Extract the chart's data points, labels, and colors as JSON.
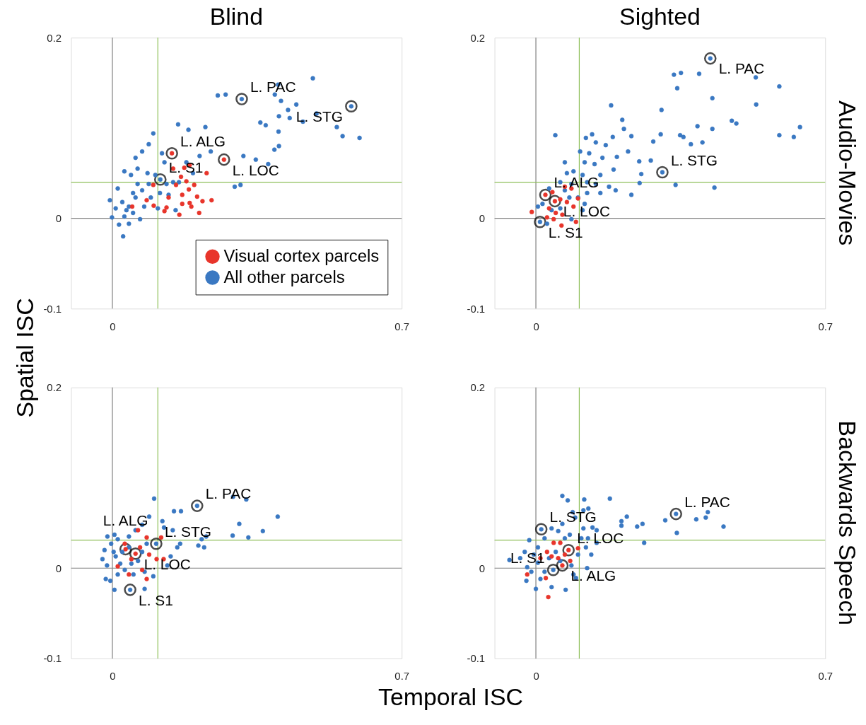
{
  "chart_data": [
    {
      "type": "scatter",
      "title": "Blind",
      "ylabel": "Spatial ISC",
      "xlim": [
        -0.1,
        0.7
      ],
      "ylim": [
        -0.1,
        0.2
      ],
      "xticks": [
        0,
        0.7
      ],
      "yticks": [
        -0.1,
        0,
        0.2
      ],
      "marker": "circle",
      "grid": false,
      "legend": "bottom right",
      "ref_lines": [
        {
          "axis": "x",
          "value": 0,
          "color": "#808080"
        },
        {
          "axis": "y",
          "value": 0,
          "color": "#808080"
        },
        {
          "axis": "x",
          "value": 0.11,
          "color": "#8fbf5a"
        },
        {
          "axis": "y",
          "value": 0.04,
          "color": "#8fbf5a"
        }
      ],
      "annotations": [
        {
          "text": "L. PAC",
          "x": 0.313,
          "y": 0.132
        },
        {
          "text": "L. STG",
          "x": 0.578,
          "y": 0.124
        },
        {
          "text": "L. ALG",
          "x": 0.144,
          "y": 0.072
        },
        {
          "text": "L. LOC",
          "x": 0.27,
          "y": 0.065
        },
        {
          "text": "L. S1",
          "x": 0.116,
          "y": 0.043
        }
      ],
      "series": [
        {
          "name": "Visual cortex parcels",
          "color": "#e8352b",
          "x": [
            0.147,
            0.174,
            0.187,
            0.228,
            0.166,
            0.179,
            0.198,
            0.154,
            0.185,
            0.169,
            0.136,
            0.205,
            0.24,
            0.218,
            0.169,
            0.187,
            0.191,
            0.131,
            0.126,
            0.162,
            0.21,
            0.048,
            0.083,
            0.099,
            0.1,
            0.144,
            0.27
          ],
          "values": [
            0.055,
            0.056,
            0.059,
            0.05,
            0.046,
            0.041,
            0.037,
            0.037,
            0.032,
            0.026,
            0.023,
            0.024,
            0.02,
            0.019,
            0.016,
            0.017,
            0.013,
            0.012,
            0.008,
            0.004,
            0.006,
            0.013,
            0.02,
            0.037,
            0.014,
            0.072,
            0.065
          ]
        },
        {
          "name": "All other parcels",
          "color": "#3a78c2",
          "x": [
            0.485,
            0.401,
            0.393,
            0.408,
            0.445,
            0.425,
            0.494,
            0.403,
            0.429,
            0.461,
            0.543,
            0.557,
            0.598,
            0.358,
            0.371,
            0.402,
            0.403,
            0.392,
            0.255,
            0.274,
            0.317,
            0.347,
            0.377,
            0.296,
            0.31,
            0.225,
            0.159,
            0.184,
            0.238,
            0.211,
            -0.006,
            -0.001,
            0.026,
            0.016,
            0.029,
            0.04,
            0.056,
            0.072,
            0.088,
            0.104,
            0.099,
            0.088,
            0.072,
            0.056,
            0.061,
            0.045,
            0.029,
            0.013,
            0.024,
            0.034,
            0.05,
            0.067,
            0.008,
            0.04,
            0.077,
            0.093,
            0.115,
            0.131,
            0.147,
            0.126,
            0.12,
            0.161,
            0.179,
            0.195,
            0.136,
            0.153,
            0.11,
            0.061,
            0.085,
            0.05,
            0.313,
            0.578,
            0.116
          ],
          "values": [
            0.155,
            0.148,
            0.137,
            0.13,
            0.126,
            0.12,
            0.116,
            0.113,
            0.111,
            0.107,
            0.101,
            0.091,
            0.089,
            0.106,
            0.103,
            0.096,
            0.08,
            0.076,
            0.136,
            0.137,
            0.069,
            0.065,
            0.06,
            0.035,
            0.037,
            0.101,
            0.104,
            0.098,
            0.074,
            0.069,
            0.02,
            0.001,
            -0.02,
            -0.007,
            0.002,
            0.013,
            0.023,
            0.031,
            0.038,
            0.048,
            0.094,
            0.082,
            0.074,
            0.067,
            0.055,
            0.048,
            0.052,
            0.033,
            0.018,
            0.009,
            0.006,
            -0.001,
            0.011,
            -0.006,
            0.013,
            0.023,
            0.028,
            0.038,
            0.04,
            0.062,
            0.072,
            0.04,
            0.062,
            0.05,
            0.026,
            0.009,
            0.011,
            0.038,
            0.05,
            0.028,
            0.132,
            0.124,
            0.043
          ]
        }
      ]
    },
    {
      "type": "scatter",
      "title": "Sighted",
      "y2label": "Audio-Movies",
      "xlim": [
        -0.1,
        0.7
      ],
      "ylim": [
        -0.1,
        0.2
      ],
      "xticks": [
        0,
        0.7
      ],
      "yticks": [
        -0.1,
        0,
        0.2
      ],
      "marker": "circle",
      "grid": false,
      "ref_lines": [
        {
          "axis": "x",
          "value": 0,
          "color": "#808080"
        },
        {
          "axis": "y",
          "value": 0,
          "color": "#808080"
        },
        {
          "axis": "x",
          "value": 0.105,
          "color": "#8fbf5a"
        },
        {
          "axis": "y",
          "value": 0.04,
          "color": "#8fbf5a"
        }
      ],
      "annotations": [
        {
          "text": "L. PAC",
          "x": 0.422,
          "y": 0.177
        },
        {
          "text": "L. STG",
          "x": 0.306,
          "y": 0.051
        },
        {
          "text": "L. ALG",
          "x": 0.023,
          "y": 0.026
        },
        {
          "text": "L. LOC",
          "x": 0.046,
          "y": 0.019
        },
        {
          "text": "L. S1",
          "x": 0.01,
          "y": -0.004
        }
      ],
      "series": [
        {
          "color": "#e8352b",
          "x": [
            -0.01,
            0.062,
            0.097,
            0.04,
            0.07,
            0.086,
            0.059,
            0.075,
            0.091,
            0.032,
            0.048,
            0.027,
            0.064,
            0.102,
            0.043,
            0.023,
            0.046
          ],
          "values": [
            0.007,
            -0.008,
            -0.004,
            0.029,
            0.035,
            0.033,
            0.021,
            0.018,
            0.013,
            0.011,
            0.006,
            0.001,
            0.004,
            0.022,
            -0.001,
            0.026,
            0.019
          ]
        },
        {
          "color": "#3a78c2",
          "x": [
            0.334,
            0.351,
            0.395,
            0.532,
            0.589,
            0.342,
            0.427,
            0.533,
            0.182,
            0.304,
            0.209,
            0.474,
            0.485,
            0.391,
            0.427,
            0.639,
            0.589,
            0.624,
            0.213,
            0.302,
            0.349,
            0.357,
            0.375,
            0.403,
            0.284,
            0.231,
            0.186,
            0.223,
            0.25,
            0.278,
            0.255,
            0.251,
            0.338,
            0.432,
            0.231,
            0.047,
            0.136,
            0.121,
            0.145,
            0.169,
            0.107,
            0.129,
            0.196,
            0.161,
            0.118,
            0.142,
            0.07,
            0.091,
            0.113,
            0.156,
            0.188,
            0.075,
            0.059,
            0.086,
            0.124,
            0.145,
            0.177,
            0.193,
            0.156,
            0.124,
            0.102,
            0.032,
            0.016,
            0.005,
            0.038,
            0.059,
            0.081,
            0.118,
            0.113,
            0.086,
            0.027,
            0.07,
            0.422,
            0.306,
            0.01
          ],
          "values": [
            0.159,
            0.161,
            0.16,
            0.156,
            0.146,
            0.144,
            0.133,
            0.126,
            0.125,
            0.12,
            0.109,
            0.108,
            0.105,
            0.102,
            0.099,
            0.101,
            0.092,
            0.09,
            0.099,
            0.093,
            0.092,
            0.09,
            0.082,
            0.084,
            0.085,
            0.091,
            0.09,
            0.074,
            0.063,
            0.064,
            0.049,
            0.039,
            0.037,
            0.034,
            0.026,
            0.092,
            0.093,
            0.089,
            0.084,
            0.081,
            0.074,
            0.072,
            0.068,
            0.067,
            0.062,
            0.06,
            0.062,
            0.052,
            0.048,
            0.048,
            0.054,
            0.05,
            0.04,
            0.038,
            0.04,
            0.038,
            0.035,
            0.031,
            0.028,
            0.028,
            0.023,
            0.033,
            0.016,
            0.013,
            0.009,
            0.011,
            0.023,
            0.016,
            0.009,
            -0.001,
            -0.006,
            0.031,
            0.177,
            0.051,
            -0.004
          ]
        }
      ]
    },
    {
      "type": "scatter",
      "xlabel": "Temporal ISC",
      "xlim": [
        -0.1,
        0.7
      ],
      "ylim": [
        -0.1,
        0.2
      ],
      "xticks": [
        0,
        0.7
      ],
      "yticks": [
        -0.1,
        0,
        0.2
      ],
      "marker": "circle",
      "grid": false,
      "ref_lines": [
        {
          "axis": "x",
          "value": 0,
          "color": "#808080"
        },
        {
          "axis": "y",
          "value": 0,
          "color": "#808080"
        },
        {
          "axis": "x",
          "value": 0.11,
          "color": "#8fbf5a"
        },
        {
          "axis": "y",
          "value": 0.031,
          "color": "#8fbf5a"
        }
      ],
      "annotations": [
        {
          "text": "L. PAC",
          "x": 0.205,
          "y": 0.069
        },
        {
          "text": "L. ALG",
          "x": 0.032,
          "y": 0.021
        },
        {
          "text": "L. LOC",
          "x": 0.056,
          "y": 0.016
        },
        {
          "text": "L. STG",
          "x": 0.106,
          "y": 0.027
        },
        {
          "text": "L. S1",
          "x": 0.043,
          "y": -0.024
        }
      ],
      "series": [
        {
          "color": "#e8352b",
          "x": [
            0.062,
            0.083,
            0.118,
            0.067,
            0.089,
            0.107,
            0.124,
            0.013,
            0.04,
            0.083,
            0.072,
            0.046,
            0.03,
            0.032,
            0.056
          ],
          "values": [
            0.042,
            0.034,
            0.034,
            0.023,
            0.015,
            0.01,
            0.01,
            0.002,
            -0.007,
            -0.012,
            -0.002,
            0.01,
            0.027,
            0.021,
            0.016
          ]
        },
        {
          "color": "#3a78c2",
          "x": [
            0.101,
            0.149,
            0.166,
            0.292,
            0.324,
            0.4,
            0.307,
            0.364,
            0.291,
            0.329,
            0.227,
            0.216,
            0.208,
            0.222,
            0.164,
            0.157,
            0.141,
            0.133,
            0.089,
            0.121,
            0.125,
            0.146,
            0.072,
            0.056,
            -0.012,
            0.005,
            -0.024,
            -0.016,
            -0.005,
            0.005,
            0.078,
            0.099,
            -0.003,
            0.013,
            0.04,
            -0.019,
            -0.013,
            0.008,
            0.019,
            0.03,
            0.046,
            0.062,
            0.072,
            0.083,
            0.013,
            0.051,
            0.078,
            0.024,
            0.04,
            0.003,
            0.205,
            0.043,
            0.106
          ],
          "values": [
            0.077,
            0.063,
            0.063,
            0.079,
            0.076,
            0.057,
            0.049,
            0.041,
            0.036,
            0.034,
            0.035,
            0.032,
            0.025,
            0.023,
            0.027,
            0.023,
            0.013,
            0.003,
            0.057,
            0.052,
            0.045,
            0.042,
            0.048,
            0.042,
            0.035,
            0.037,
            0.01,
            -0.012,
            -0.014,
            -0.024,
            -0.023,
            -0.009,
            0.027,
            0.032,
            0.035,
            0.02,
            0.003,
            0.013,
            0.005,
            -0.002,
            0.005,
            0.008,
            0.018,
            0.027,
            -0.007,
            -0.007,
            -0.004,
            0.018,
            0.023,
            0.018,
            0.069,
            -0.024,
            0.027
          ]
        }
      ]
    },
    {
      "type": "scatter",
      "y2label": "Backwards Speech",
      "xlim": [
        -0.1,
        0.7
      ],
      "ylim": [
        -0.1,
        0.2
      ],
      "xticks": [
        0,
        0.7
      ],
      "yticks": [
        -0.1,
        0,
        0.2
      ],
      "marker": "circle",
      "grid": false,
      "ref_lines": [
        {
          "axis": "x",
          "value": 0,
          "color": "#808080"
        },
        {
          "axis": "y",
          "value": 0,
          "color": "#808080"
        },
        {
          "axis": "x",
          "value": 0.105,
          "color": "#8fbf5a"
        },
        {
          "axis": "y",
          "value": 0.031,
          "color": "#8fbf5a"
        }
      ],
      "annotations": [
        {
          "text": "L. PAC",
          "x": 0.339,
          "y": 0.06
        },
        {
          "text": "L. STG",
          "x": 0.013,
          "y": 0.043
        },
        {
          "text": "L. LOC",
          "x": 0.079,
          "y": 0.02
        },
        {
          "text": "L. ALG",
          "x": 0.064,
          "y": 0.003
        },
        {
          "text": "L. S1",
          "x": 0.042,
          "y": -0.002
        }
      ],
      "series": [
        {
          "color": "#e8352b",
          "x": [
            0.03,
            -0.021,
            0.024,
            0.043,
            0.059,
            0.102,
            0.038,
            0.054,
            0.083,
            0.011,
            0.027,
            0.07,
            0.079,
            0.064
          ],
          "values": [
            -0.032,
            -0.007,
            -0.011,
            0.028,
            0.028,
            0.022,
            0.013,
            0.011,
            0.008,
            0.011,
            0.018,
            0.015,
            0.02,
            0.003
          ]
        },
        {
          "color": "#3a78c2",
          "x": [
            0.064,
            0.077,
            0.117,
            0.179,
            0.127,
            0.115,
            0.089,
            0.095,
            0.22,
            0.207,
            0.207,
            0.245,
            0.258,
            0.313,
            0.388,
            0.411,
            0.416,
            0.454,
            0.341,
            0.262,
            0.147,
            0.137,
            0.147,
            0.115,
            0.126,
            0.11,
            0.064,
            0.054,
            0.082,
            0.038,
            -0.016,
            -0.064,
            -0.038,
            -0.027,
            -0.021,
            -0.023,
            0,
            0.038,
            0.072,
            0.097,
            0.124,
            0.134,
            0.121,
            0.102,
            0.005,
            0.021,
            -0.005,
            0.005,
            0.021,
            0.032,
            0.048,
            0.059,
            0.086,
            0.091,
            0.011,
            -0.011,
            0.07,
            0.339,
            0.013,
            0.042
          ],
          "values": [
            0.08,
            0.075,
            0.076,
            0.077,
            0.066,
            0.064,
            0.062,
            0.056,
            0.057,
            0.052,
            0.047,
            0.046,
            0.049,
            0.053,
            0.054,
            0.056,
            0.062,
            0.046,
            0.039,
            0.028,
            0.028,
            0.045,
            0.042,
            0.044,
            0.033,
            0.033,
            0.049,
            0.041,
            0.037,
            0.044,
            0.031,
            0.009,
            0.011,
            0.018,
            0.001,
            -0.014,
            -0.023,
            -0.021,
            -0.024,
            -0.011,
            0,
            0.015,
            0.023,
            0.015,
            0.023,
            0.033,
            0.015,
            0.006,
            -0.004,
            0.011,
            0.018,
            0.008,
            0.003,
            -0.007,
            -0.012,
            -0.004,
            0.033,
            0.06,
            0.043,
            -0.002
          ]
        }
      ]
    }
  ]
}
